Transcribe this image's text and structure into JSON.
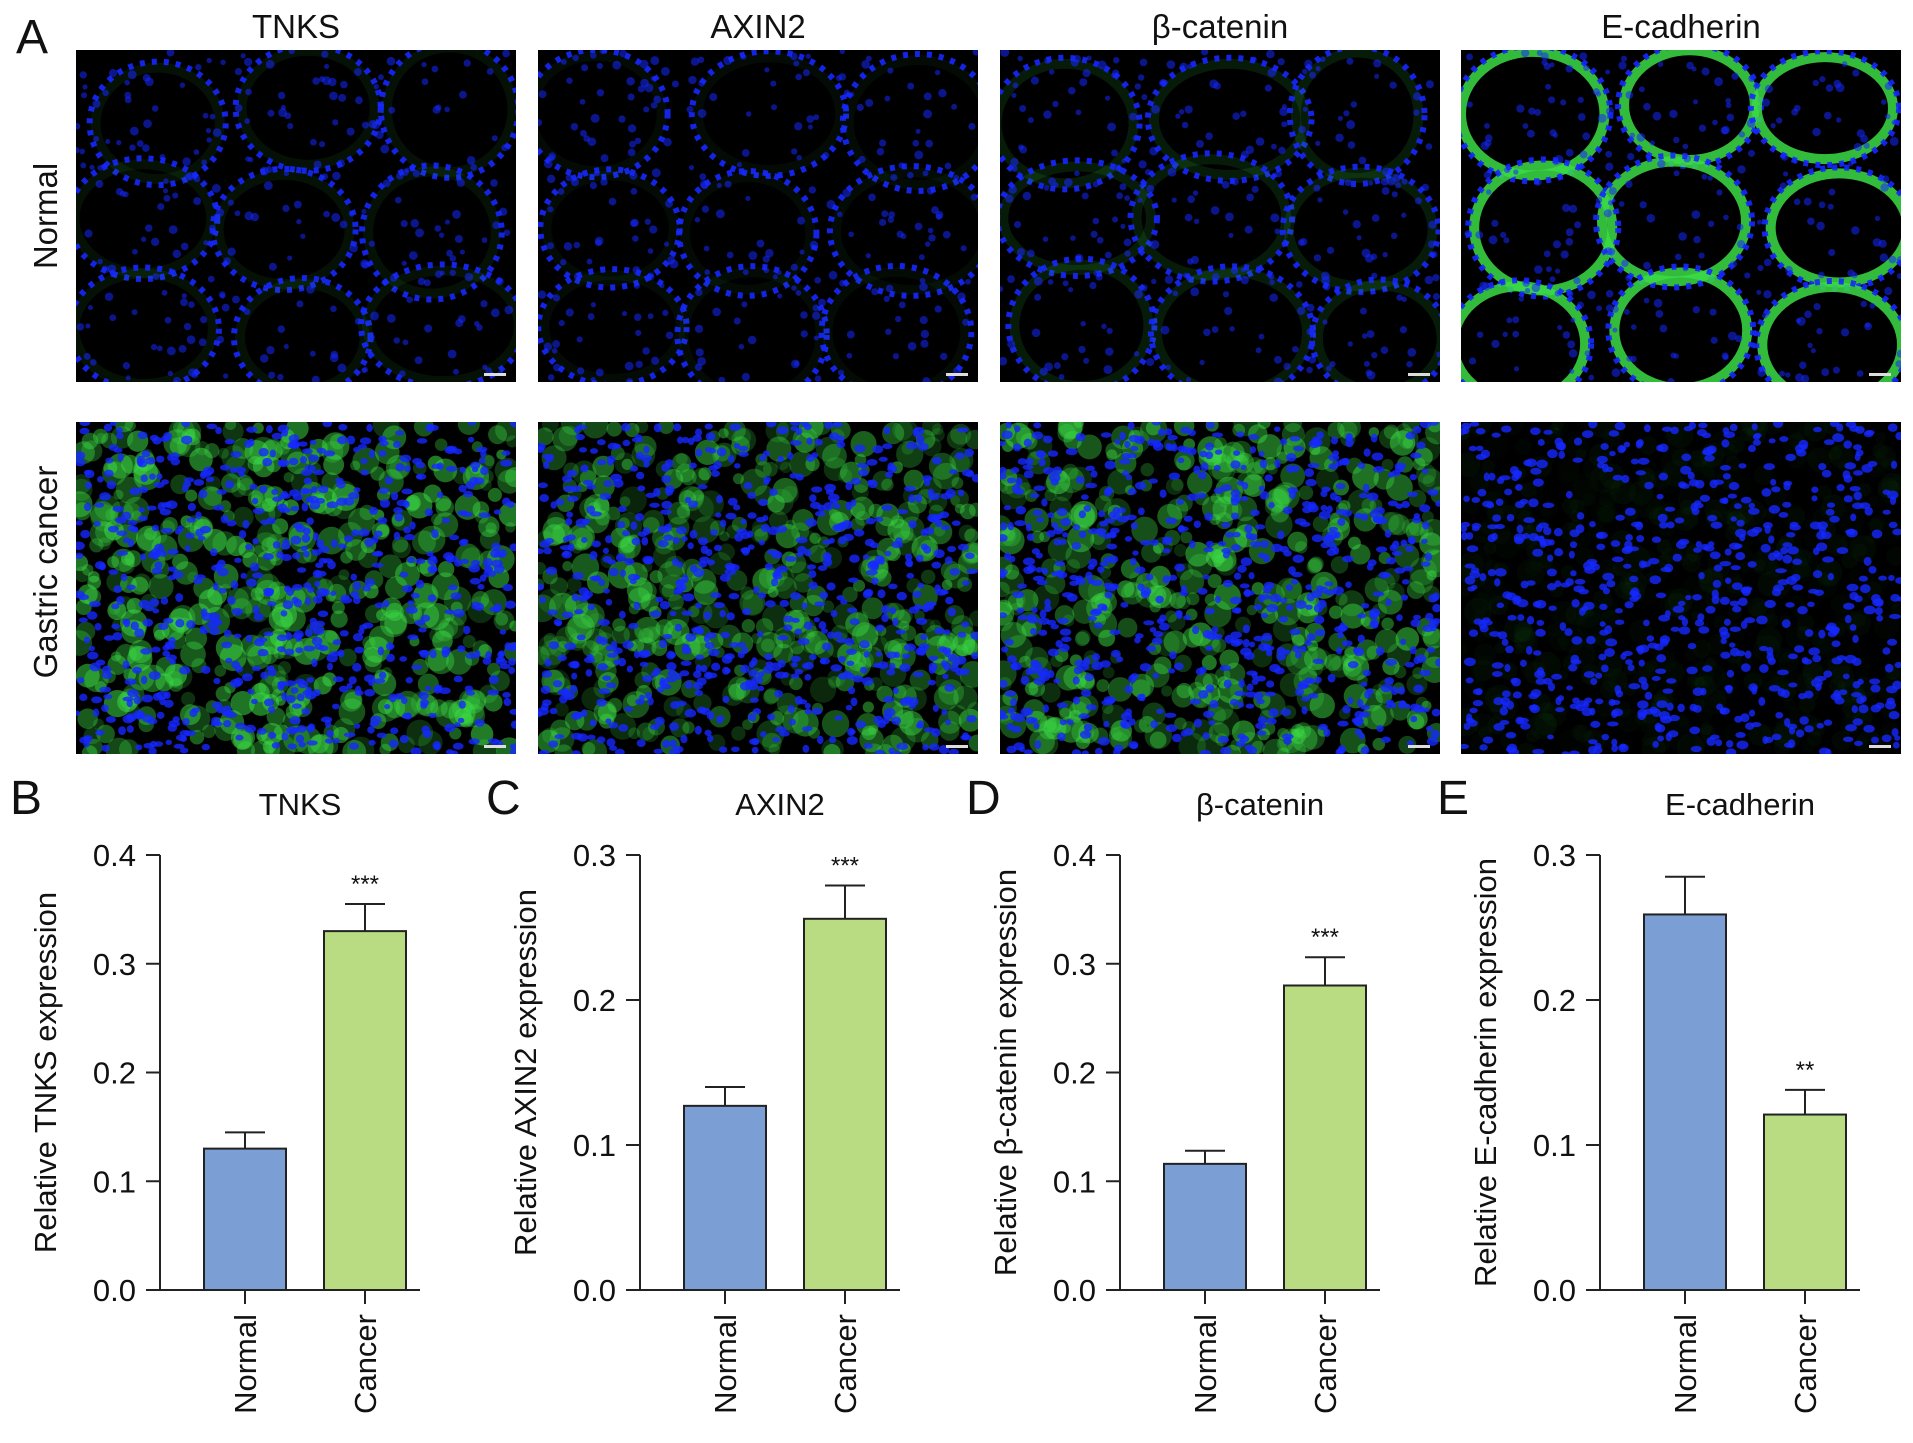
{
  "panel_labels": [
    "A",
    "B",
    "C",
    "D",
    "E"
  ],
  "columns": [
    "TNKS",
    "AXIN2",
    "β-catenin",
    "E-cadherin"
  ],
  "rows": [
    "Normal",
    "Gastric cancer"
  ],
  "micrographs": [
    {
      "row": "Normal",
      "column": "TNKS",
      "green_level": 0.08
    },
    {
      "row": "Normal",
      "column": "AXIN2",
      "green_level": 0.05
    },
    {
      "row": "Normal",
      "column": "β-catenin",
      "green_level": 0.12
    },
    {
      "row": "Normal",
      "column": "E-cadherin",
      "green_level": 0.85
    },
    {
      "row": "Gastric cancer",
      "column": "TNKS",
      "green_level": 0.75
    },
    {
      "row": "Gastric cancer",
      "column": "AXIN2",
      "green_level": 0.65
    },
    {
      "row": "Gastric cancer",
      "column": "β-catenin",
      "green_level": 0.7
    },
    {
      "row": "Gastric cancer",
      "column": "E-cadherin",
      "green_level": 0.05
    }
  ],
  "colors": {
    "normal_bar": "#7b9fd4",
    "cancer_bar": "#b9dc83",
    "nuclei": "#1528ff",
    "stain": "#3cdc46",
    "axis": "#222222"
  },
  "chart_data": [
    {
      "type": "bar",
      "title": "TNKS",
      "ylabel": "Relative TNKS expression",
      "categories": [
        "Normal",
        "Cancer"
      ],
      "values": [
        0.13,
        0.33
      ],
      "errors": [
        0.015,
        0.025
      ],
      "significance": [
        "",
        "***"
      ],
      "ylim": [
        0,
        0.4
      ],
      "yticks": [
        "0.0",
        "0.1",
        "0.2",
        "0.3",
        "0.4"
      ]
    },
    {
      "type": "bar",
      "title": "AXIN2",
      "ylabel": "Relative AXIN2 expression",
      "categories": [
        "Normal",
        "Cancer"
      ],
      "values": [
        0.127,
        0.256
      ],
      "errors": [
        0.013,
        0.023
      ],
      "significance": [
        "",
        "***"
      ],
      "ylim": [
        0,
        0.3
      ],
      "yticks": [
        "0.0",
        "0.1",
        "0.2",
        "0.3"
      ]
    },
    {
      "type": "bar",
      "title": "β-catenin",
      "ylabel": "Relative β-catenin expression",
      "categories": [
        "Normal",
        "Cancer"
      ],
      "values": [
        0.116,
        0.28
      ],
      "errors": [
        0.012,
        0.026
      ],
      "significance": [
        "",
        "***"
      ],
      "ylim": [
        0,
        0.4
      ],
      "yticks": [
        "0.0",
        "0.1",
        "0.2",
        "0.3",
        "0.4"
      ]
    },
    {
      "type": "bar",
      "title": "E-cadherin",
      "ylabel": "Relative E-cadherin expression",
      "categories": [
        "Normal",
        "Cancer"
      ],
      "values": [
        0.259,
        0.121
      ],
      "errors": [
        0.026,
        0.017
      ],
      "significance": [
        "",
        "**"
      ],
      "ylim": [
        0,
        0.3
      ],
      "yticks": [
        "0.0",
        "0.1",
        "0.2",
        "0.3"
      ]
    }
  ]
}
